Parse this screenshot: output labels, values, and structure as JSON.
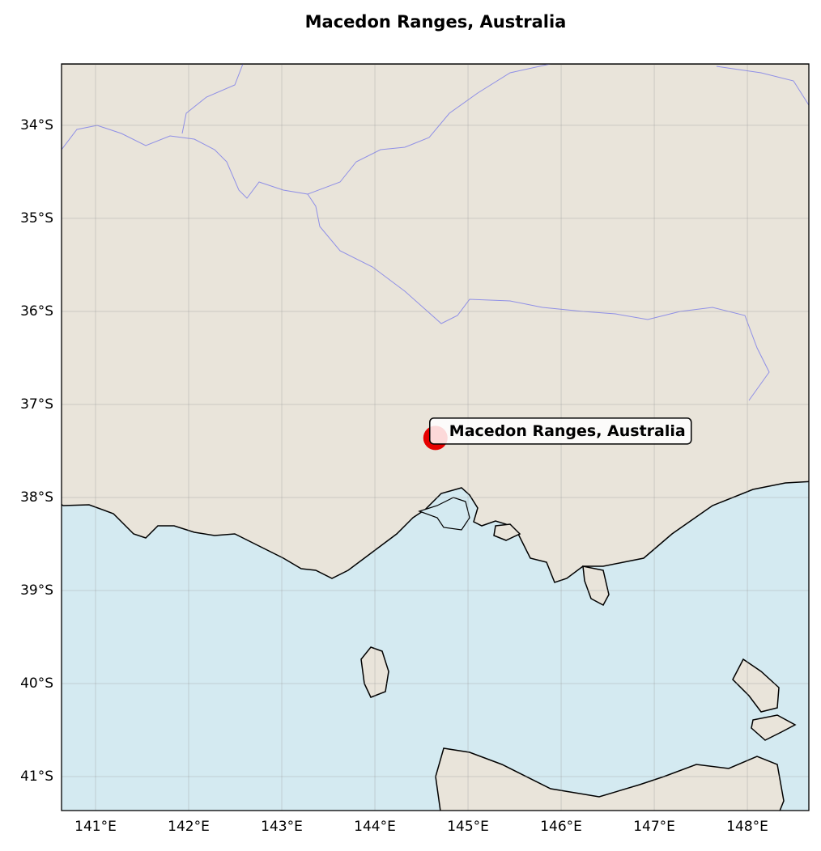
{
  "map": {
    "title": "Macedon Ranges, Australia",
    "xlim": [
      140.635,
      148.66
    ],
    "ylim": [
      -41.365,
      -33.34
    ],
    "xticks": [
      {
        "value": 141,
        "label": "141°E"
      },
      {
        "value": 142,
        "label": "142°E"
      },
      {
        "value": 143,
        "label": "143°E"
      },
      {
        "value": 144,
        "label": "144°E"
      },
      {
        "value": 145,
        "label": "145°E"
      },
      {
        "value": 146,
        "label": "146°E"
      },
      {
        "value": 147,
        "label": "147°E"
      },
      {
        "value": 148,
        "label": "148°E"
      }
    ],
    "yticks": [
      {
        "value": -34,
        "label": "34°S"
      },
      {
        "value": -35,
        "label": "35°S"
      },
      {
        "value": -36,
        "label": "36°S"
      },
      {
        "value": -37,
        "label": "37°S"
      },
      {
        "value": -38,
        "label": "38°S"
      },
      {
        "value": -39,
        "label": "39°S"
      },
      {
        "value": -40,
        "label": "40°S"
      },
      {
        "value": -41,
        "label": "41°S"
      }
    ],
    "grid": true,
    "marker": {
      "name": "Macedon Ranges, Australia",
      "lon": 144.65,
      "lat": -37.36,
      "color": "#e60000"
    }
  }
}
